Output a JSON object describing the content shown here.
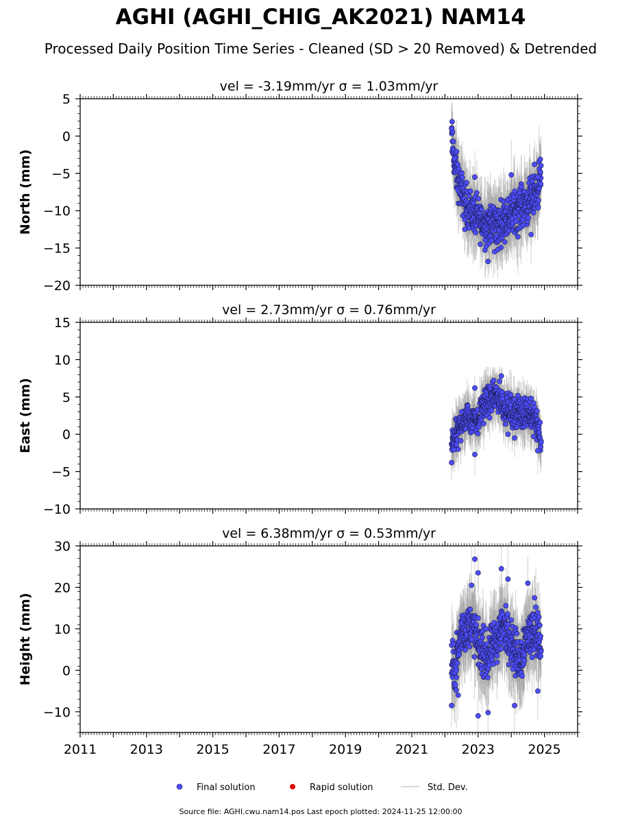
{
  "title": "AGHI (AGHI_CHIG_AK2021) NAM14",
  "subtitle": "Processed Daily Position Time Series - Cleaned (SD > 20 Removed) & Detrended",
  "footer": "Source file: AGHI.cwu.nam14.pos  Last epoch plotted: 2024-11-25 12:00:00",
  "colors": {
    "final_fill": "#4d4dff",
    "final_edge": "#1a1a40",
    "rapid": "#e00000",
    "stddev": "#999999",
    "axes": "#000000"
  },
  "legend": [
    {
      "label": "Final solution",
      "marker": "circle",
      "color": "#4d4dff"
    },
    {
      "label": "Rapid solution",
      "marker": "circle",
      "color": "#e00000"
    },
    {
      "label": "Std. Dev.",
      "marker": "line",
      "color": "#cccccc"
    }
  ],
  "chart_data": [
    {
      "type": "scatter",
      "annotation": "vel = -3.19mm/yr   σ = 1.03mm/yr",
      "ylabel": "North (mm)",
      "xlim": [
        2011,
        2026
      ],
      "ylim": [
        -20,
        5
      ],
      "yticks": [
        5,
        0,
        -5,
        -10,
        -15,
        -20
      ],
      "ytick_labels": [
        "5",
        "0",
        "−5",
        "−10",
        "−15",
        "−20"
      ],
      "x": [
        2022.2,
        2022.3,
        2022.4,
        2022.5,
        2022.6,
        2022.7,
        2022.8,
        2022.9,
        2023.0,
        2023.1,
        2023.2,
        2023.3,
        2023.4,
        2023.5,
        2023.6,
        2023.7,
        2023.8,
        2023.9,
        2024.0,
        2024.1,
        2024.2,
        2024.3,
        2024.4,
        2024.5,
        2024.6,
        2024.7,
        2024.8,
        2024.9
      ],
      "y": [
        0,
        -4,
        -6,
        -7.5,
        -8.5,
        -9.5,
        -10,
        -10.5,
        -11,
        -11.5,
        -12,
        -11.5,
        -12,
        -11.5,
        -12,
        -11.5,
        -11,
        -11,
        -10.5,
        -10,
        -9.5,
        -9.5,
        -9,
        -9,
        -8.5,
        -8,
        -7,
        -5
      ],
      "spread": 2.2,
      "outliers": [
        [
          2022.2,
          1
        ],
        [
          2022.3,
          -3
        ],
        [
          2022.6,
          -12.5
        ],
        [
          2022.9,
          -5.5
        ],
        [
          2023.3,
          -16.8
        ],
        [
          2023.4,
          -14
        ],
        [
          2023.5,
          -15.5
        ],
        [
          2023.6,
          -15.2
        ],
        [
          2024.0,
          -5.2
        ],
        [
          2024.2,
          -13.5
        ],
        [
          2024.6,
          -13.2
        ],
        [
          2024.7,
          -3.8
        ],
        [
          2024.8,
          -5.5
        ]
      ],
      "sd_range": [
        -19,
        4.5
      ]
    },
    {
      "type": "scatter",
      "annotation": "vel = 2.73mm/yr   σ = 0.76mm/yr",
      "ylabel": "East (mm)",
      "xlim": [
        2011,
        2026
      ],
      "ylim": [
        -10,
        15
      ],
      "yticks": [
        15,
        10,
        5,
        0,
        -5,
        -10
      ],
      "ytick_labels": [
        "15",
        "10",
        "5",
        "0",
        "−5",
        "−10"
      ],
      "x": [
        2022.2,
        2022.3,
        2022.4,
        2022.5,
        2022.6,
        2022.7,
        2022.8,
        2022.9,
        2023.0,
        2023.1,
        2023.2,
        2023.3,
        2023.4,
        2023.5,
        2023.6,
        2023.7,
        2023.8,
        2023.9,
        2024.0,
        2024.1,
        2024.2,
        2024.3,
        2024.4,
        2024.5,
        2024.6,
        2024.7,
        2024.8,
        2024.9
      ],
      "y": [
        -1.5,
        -0.5,
        0.5,
        1.5,
        2,
        2.5,
        2,
        2.5,
        1.5,
        3.5,
        4,
        4.5,
        4.5,
        5,
        5,
        4.5,
        3.5,
        3.5,
        3,
        3,
        3,
        2.5,
        3,
        3,
        2.5,
        2,
        1,
        -1
      ],
      "spread": 1.6,
      "outliers": [
        [
          2022.2,
          -3.8
        ],
        [
          2022.4,
          -2
        ],
        [
          2022.5,
          3
        ],
        [
          2022.9,
          -2.7
        ],
        [
          2022.9,
          6.2
        ],
        [
          2023.7,
          7.8
        ],
        [
          2023.9,
          0
        ],
        [
          2024.1,
          -0.5
        ],
        [
          2024.2,
          5.2
        ],
        [
          2024.6,
          4.8
        ],
        [
          2024.8,
          -2.2
        ]
      ],
      "sd_range": [
        -6.5,
        9
      ]
    },
    {
      "type": "scatter",
      "annotation": "vel = 6.38mm/yr   σ = 0.53mm/yr",
      "ylabel": "Height (mm)",
      "xlim": [
        2011,
        2026
      ],
      "ylim": [
        -15,
        30
      ],
      "yticks": [
        30,
        20,
        10,
        0,
        -10
      ],
      "ytick_labels": [
        "30",
        "20",
        "10",
        "0",
        "−10"
      ],
      "x": [
        2022.2,
        2022.3,
        2022.4,
        2022.5,
        2022.6,
        2022.7,
        2022.8,
        2022.9,
        2023.0,
        2023.1,
        2023.2,
        2023.3,
        2023.4,
        2023.5,
        2023.6,
        2023.7,
        2023.8,
        2023.9,
        2024.0,
        2024.1,
        2024.2,
        2024.3,
        2024.4,
        2024.5,
        2024.6,
        2024.7,
        2024.8,
        2024.9
      ],
      "y": [
        1,
        0,
        5,
        9,
        10,
        10,
        11,
        9,
        6,
        5,
        4,
        3,
        5,
        7,
        8,
        10,
        10,
        9,
        7,
        5,
        3,
        3,
        7,
        8,
        9,
        10,
        9,
        5
      ],
      "spread": 4.5,
      "outliers": [
        [
          2022.2,
          -8.5
        ],
        [
          2022.4,
          -6
        ],
        [
          2022.8,
          20.5
        ],
        [
          2022.9,
          26.8
        ],
        [
          2023.0,
          23.5
        ],
        [
          2023.0,
          -11
        ],
        [
          2023.3,
          -10.2
        ],
        [
          2023.7,
          24.5
        ],
        [
          2023.9,
          22
        ],
        [
          2024.1,
          -8.5
        ],
        [
          2024.5,
          21
        ],
        [
          2024.7,
          17.5
        ],
        [
          2024.8,
          -5
        ]
      ],
      "sd_range": [
        -15,
        30
      ]
    }
  ],
  "x_axis": {
    "major_ticks": [
      2011,
      2013,
      2015,
      2017,
      2019,
      2021,
      2023,
      2025
    ],
    "tick_labels": [
      "2011",
      "2013",
      "2015",
      "2017",
      "2019",
      "2021",
      "2023",
      "2025"
    ]
  }
}
